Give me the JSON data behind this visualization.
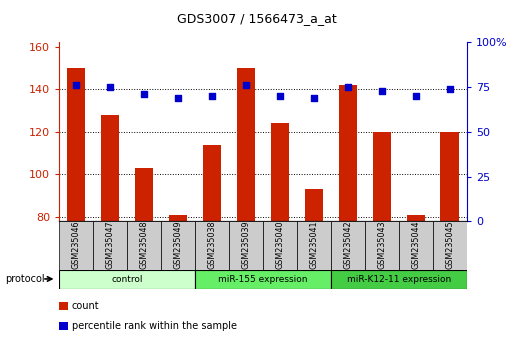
{
  "title": "GDS3007 / 1566473_a_at",
  "samples": [
    "GSM235046",
    "GSM235047",
    "GSM235048",
    "GSM235049",
    "GSM235038",
    "GSM235039",
    "GSM235040",
    "GSM235041",
    "GSM235042",
    "GSM235043",
    "GSM235044",
    "GSM235045"
  ],
  "bar_values": [
    150,
    128,
    103,
    81,
    114,
    150,
    124,
    93,
    142,
    120,
    81,
    120
  ],
  "percentile_values": [
    76,
    75,
    71,
    69,
    70,
    76,
    70,
    69,
    75,
    73,
    70,
    74
  ],
  "bar_color": "#cc2200",
  "dot_color": "#0000cc",
  "ylim_left": [
    78,
    162
  ],
  "ylim_right": [
    0,
    100
  ],
  "yticks_left": [
    80,
    100,
    120,
    140,
    160
  ],
  "yticks_right": [
    0,
    25,
    50,
    75,
    100
  ],
  "ytick_labels_right": [
    "0",
    "25",
    "50",
    "75",
    "100%"
  ],
  "groups": [
    {
      "label": "control",
      "start": 0,
      "end": 4,
      "color": "#ccffcc"
    },
    {
      "label": "miR-155 expression",
      "start": 4,
      "end": 8,
      "color": "#66ee66"
    },
    {
      "label": "miR-K12-11 expression",
      "start": 8,
      "end": 12,
      "color": "#44cc44"
    }
  ],
  "protocol_label": "protocol",
  "legend_items": [
    {
      "color": "#cc2200",
      "label": "count"
    },
    {
      "color": "#0000cc",
      "label": "percentile rank within the sample"
    }
  ],
  "bar_width": 0.55,
  "background_color": "white",
  "axis_left_color": "#cc2200",
  "axis_right_color": "#0000cc",
  "label_box_color": "#cccccc",
  "bar_bottom": 78
}
